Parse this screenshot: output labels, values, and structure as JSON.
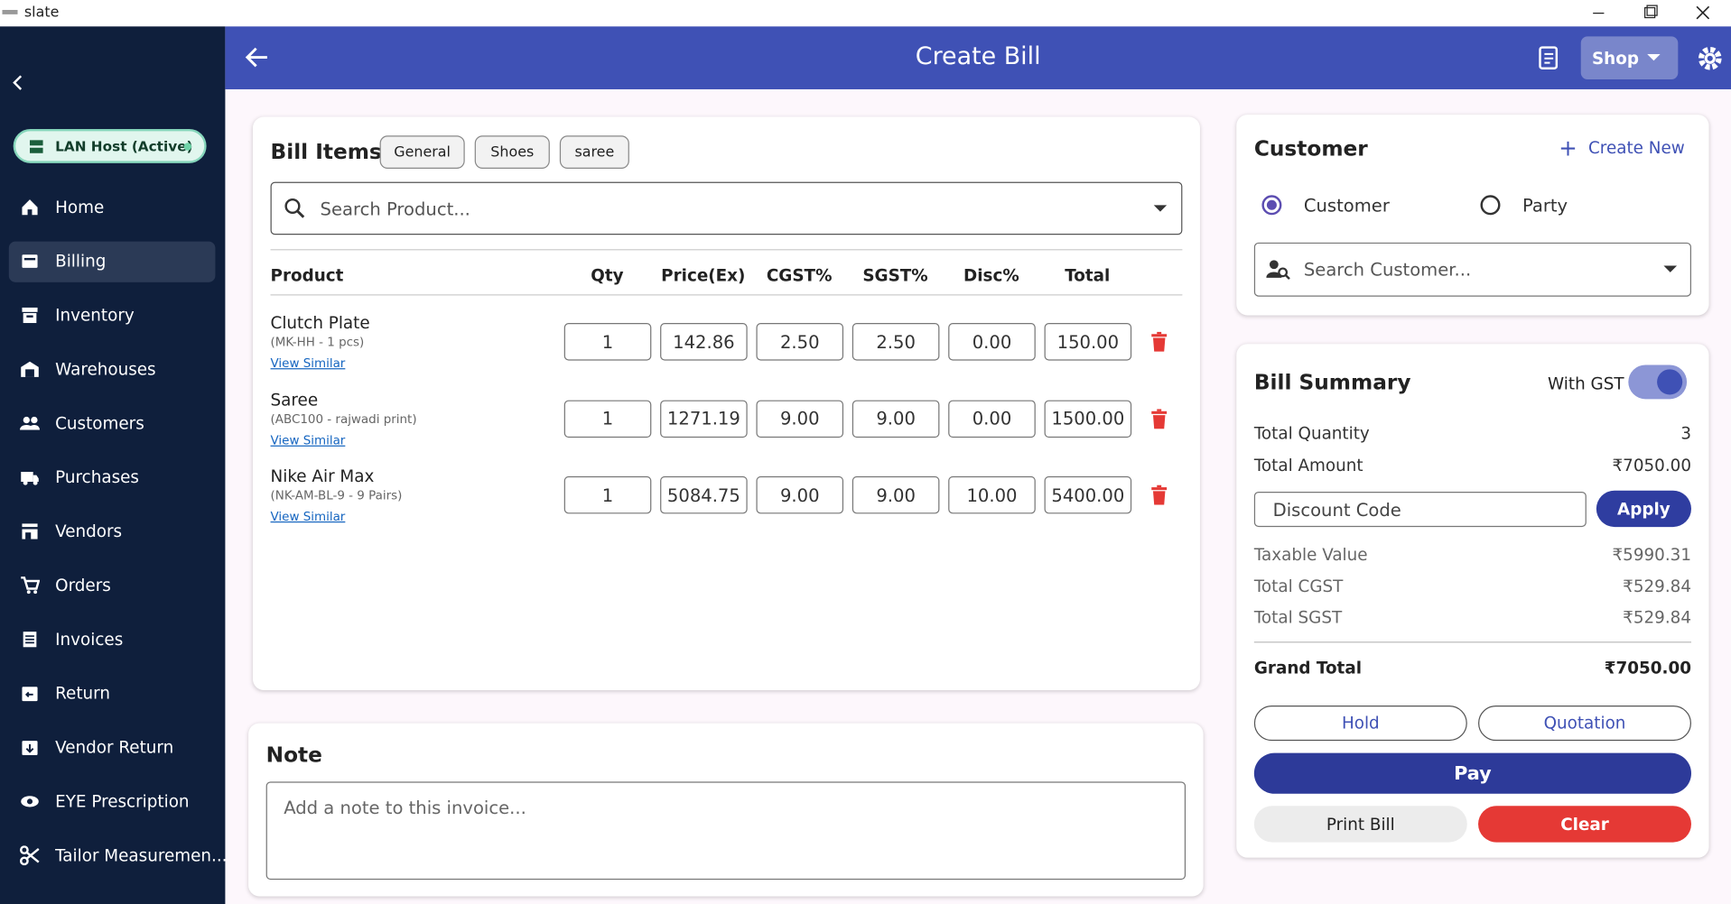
{
  "window": {
    "title": "slate"
  },
  "sidebar": {
    "status": "LAN Host (Active)",
    "items": [
      "Home",
      "Billing",
      "Inventory",
      "Warehouses",
      "Customers",
      "Purchases",
      "Vendors",
      "Orders",
      "Invoices",
      "Return",
      "Vendor Return",
      "EYE Prescription",
      "Tailor Measuremen..."
    ]
  },
  "header": {
    "title": "Create Bill",
    "shop_button": "Shop"
  },
  "bill_items": {
    "title": "Bill Items",
    "tabs": [
      "General",
      "Shoes",
      "saree"
    ],
    "search_placeholder": "Search Product...",
    "columns": [
      "Product",
      "Qty",
      "Price(Ex)",
      "CGST%",
      "SGST%",
      "Disc%",
      "Total"
    ],
    "rows": [
      {
        "name": "Clutch Plate",
        "sku": "(MK-HH - 1 pcs)",
        "link": "View Similar",
        "cells": [
          "1",
          "142.86",
          "2.50",
          "2.50",
          "0.00",
          "150.00"
        ]
      },
      {
        "name": "Saree",
        "sku": "(ABC100 - rajwadi print)",
        "link": "View Similar",
        "cells": [
          "1",
          "1271.19",
          "9.00",
          "9.00",
          "0.00",
          "1500.00"
        ]
      },
      {
        "name": "Nike Air Max",
        "sku": "(NK-AM-BL-9 - 9 Pairs)",
        "link": "View Similar",
        "cells": [
          "1",
          "5084.75",
          "9.00",
          "9.00",
          "10.00",
          "5400.00"
        ]
      }
    ]
  },
  "note": {
    "title": "Note",
    "placeholder": "Add a note to this invoice..."
  },
  "customer": {
    "title": "Customer",
    "create_new": "Create New",
    "options": [
      "Customer",
      "Party"
    ],
    "search_placeholder": "Search Customer..."
  },
  "summary": {
    "title": "Bill Summary",
    "gst_label": "With GST",
    "top_rows": [
      [
        "Total Quantity",
        "3"
      ],
      [
        "Total Amount",
        "₹7050.00"
      ]
    ],
    "discount_placeholder": "Discount Code",
    "apply": "Apply",
    "tax_rows": [
      [
        "Taxable Value",
        "₹5990.31"
      ],
      [
        "Total CGST",
        "₹529.84"
      ],
      [
        "Total SGST",
        "₹529.84"
      ]
    ],
    "grand_total": [
      "Grand Total",
      "₹7050.00"
    ],
    "buttons": {
      "hold": "Hold",
      "quotation": "Quotation",
      "pay": "Pay",
      "print": "Print Bill",
      "clear": "Clear"
    }
  }
}
